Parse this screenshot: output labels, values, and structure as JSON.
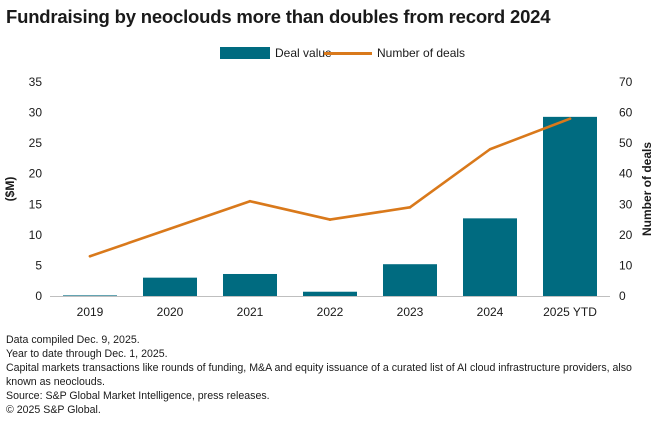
{
  "chart_data": {
    "type": "bar",
    "title": "Fundraising by neoclouds more than doubles from record 2024",
    "categories": [
      "2019",
      "2020",
      "2021",
      "2022",
      "2023",
      "2024",
      "2025 YTD"
    ],
    "series": [
      {
        "name": "Deal value",
        "type": "bar",
        "axis": "left",
        "color": "#006b80",
        "values": [
          0.1,
          3.0,
          3.6,
          0.7,
          5.2,
          12.7,
          29.3
        ]
      },
      {
        "name": "Number of deals",
        "type": "line",
        "axis": "right",
        "color": "#d9791b",
        "values": [
          13,
          22,
          31,
          25,
          29,
          48,
          58
        ]
      }
    ],
    "ylabel_left": "($M)",
    "ylabel_right": "Number of deals",
    "ylim_left": [
      0,
      35
    ],
    "yticks_left": [
      "0",
      "5",
      "10",
      "15",
      "20",
      "25",
      "30",
      "35"
    ],
    "ylim_right": [
      0,
      70
    ],
    "yticks_right": [
      "0",
      "10",
      "20",
      "30",
      "40",
      "50",
      "60",
      "70"
    ],
    "grid": false,
    "legend_position": "top-center"
  },
  "notes": [
    "Data compiled Dec. 9, 2025.",
    "Year to date through Dec. 1, 2025.",
    "Capital markets transactions like rounds of funding, M&A and equity issuance of a curated list of AI cloud infrastructure providers, also known as neoclouds.",
    "Source: S&P Global Market Intelligence, press releases.",
    "© 2025 S&P Global."
  ]
}
